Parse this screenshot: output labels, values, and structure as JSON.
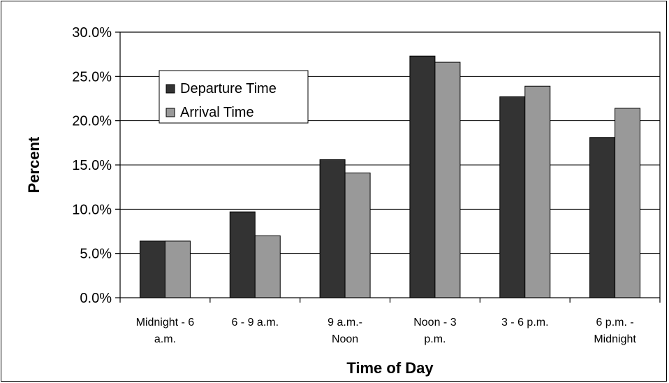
{
  "chart_data": {
    "type": "bar",
    "title": "",
    "xlabel": "Time of Day",
    "ylabel": "Percent",
    "ylim": [
      0,
      30
    ],
    "ytick_step": 5,
    "ytick_labels": [
      "0.0%",
      "5.0%",
      "10.0%",
      "15.0%",
      "20.0%",
      "25.0%",
      "30.0%"
    ],
    "categories": [
      [
        "Midnight - 6",
        "a.m."
      ],
      [
        "6 - 9 a.m."
      ],
      [
        "9 a.m.-",
        "Noon"
      ],
      [
        "Noon - 3",
        "p.m."
      ],
      [
        "3 - 6  p.m."
      ],
      [
        "6 p.m. -",
        "Midnight"
      ]
    ],
    "series": [
      {
        "name": "Departure Time",
        "color": "#333333",
        "values": [
          6.4,
          9.7,
          15.6,
          27.3,
          22.7,
          18.1
        ]
      },
      {
        "name": "Arrival Time",
        "color": "#999999",
        "values": [
          6.4,
          7.0,
          14.1,
          26.6,
          23.9,
          21.4
        ]
      }
    ],
    "grid": "horizontal",
    "legend_position": "top-left"
  }
}
